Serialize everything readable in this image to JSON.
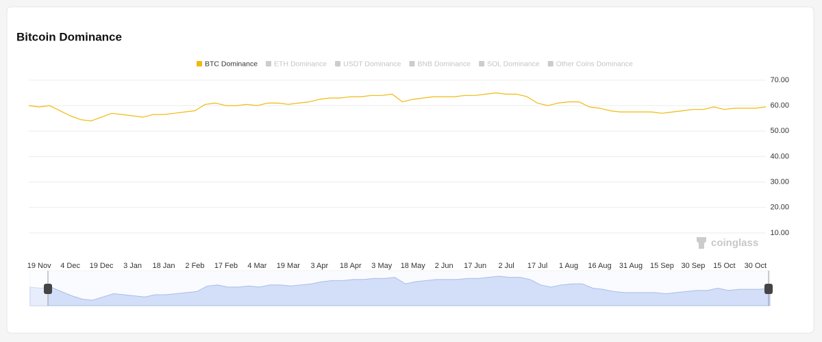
{
  "chart_data": {
    "type": "line",
    "title": "Bitcoin Dominance",
    "watermark": "coinglass",
    "categories": [
      null,
      "19 Nov",
      null,
      null,
      "4 Dec",
      null,
      null,
      "19 Dec",
      null,
      null,
      "3 Jan",
      null,
      null,
      "18 Jan",
      null,
      null,
      "2 Feb",
      null,
      null,
      "17 Feb",
      null,
      null,
      "4 Mar",
      null,
      null,
      "19 Mar",
      null,
      null,
      "3 Apr",
      null,
      null,
      "18 Apr",
      null,
      null,
      "3 May",
      null,
      null,
      "18 May",
      null,
      null,
      "2 Jun",
      null,
      null,
      "17 Jun",
      null,
      null,
      "2 Jul",
      null,
      null,
      "17 Jul",
      null,
      null,
      "1 Aug",
      null,
      null,
      "16 Aug",
      null,
      null,
      "31 Aug",
      null,
      null,
      "15 Sep",
      null,
      null,
      "30 Sep",
      null,
      null,
      "15 Oct",
      null,
      null,
      "30 Oct",
      null
    ],
    "series": [
      {
        "name": "BTC Dominance",
        "color": "#f0b90b",
        "values": [
          60,
          59.5,
          60,
          58,
          56,
          54.5,
          54,
          55.5,
          57,
          56.5,
          56,
          55.5,
          56.5,
          56.5,
          57,
          57.5,
          58,
          60.5,
          61,
          60,
          60,
          60.5,
          60,
          61,
          61,
          60.5,
          61,
          61.5,
          62.5,
          63,
          63,
          63.5,
          63.5,
          64,
          64,
          64.5,
          61.5,
          62.5,
          63,
          63.5,
          63.5,
          63.5,
          64,
          64,
          64.5,
          65,
          64.5,
          64.5,
          63.5,
          61,
          60,
          61,
          61.5,
          61.5,
          59.5,
          59,
          58,
          57.5,
          57.5,
          57.5,
          57.5,
          57,
          57.5,
          58,
          58.5,
          58.5,
          59.5,
          58.5,
          59,
          59,
          59,
          59.5
        ]
      },
      {
        "name": "ETH Dominance",
        "color": "#cccccc",
        "hidden": true
      },
      {
        "name": "USDT Dominance",
        "color": "#cccccc",
        "hidden": true
      },
      {
        "name": "BNB Dominance",
        "color": "#cccccc",
        "hidden": true
      },
      {
        "name": "SOL Dominance",
        "color": "#cccccc",
        "hidden": true
      },
      {
        "name": "Other Coins Dominance",
        "color": "#cccccc",
        "hidden": true
      }
    ],
    "ylim": [
      0,
      70
    ],
    "yticks": [
      {
        "value": 10,
        "label": "10.00"
      },
      {
        "value": 20,
        "label": "20.00"
      },
      {
        "value": 30,
        "label": "30.00"
      },
      {
        "value": 40,
        "label": "40.00"
      },
      {
        "value": 50,
        "label": "50.00"
      },
      {
        "value": 60,
        "label": "60.00"
      },
      {
        "value": 70,
        "label": "70.00"
      }
    ],
    "grid": true
  }
}
